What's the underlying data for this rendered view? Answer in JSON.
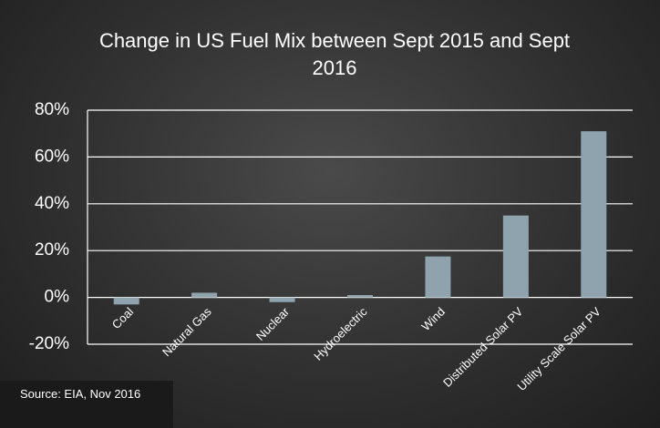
{
  "chart_data": {
    "type": "bar",
    "title": "Change in US Fuel Mix between Sept 2015 and Sept 2016",
    "categories": [
      "Coal",
      "Natural Gas",
      "Nuclear",
      "Hydroelectric",
      "Wind",
      "Distributed Solar PV",
      "Utility Scale Solar PV"
    ],
    "values": [
      -3,
      2,
      -2,
      1,
      17.5,
      35,
      71
    ],
    "color": "#8fa3ae",
    "ylim": [
      -20,
      80
    ],
    "yticks": [
      {
        "value": -20,
        "label": "-20%"
      },
      {
        "value": 0,
        "label": "0%"
      },
      {
        "value": 20,
        "label": "20%"
      },
      {
        "value": 40,
        "label": "40%"
      },
      {
        "value": 60,
        "label": "60%"
      },
      {
        "value": 80,
        "label": "80%"
      }
    ],
    "grid": true,
    "source": "Source: EIA, Nov 2016"
  }
}
